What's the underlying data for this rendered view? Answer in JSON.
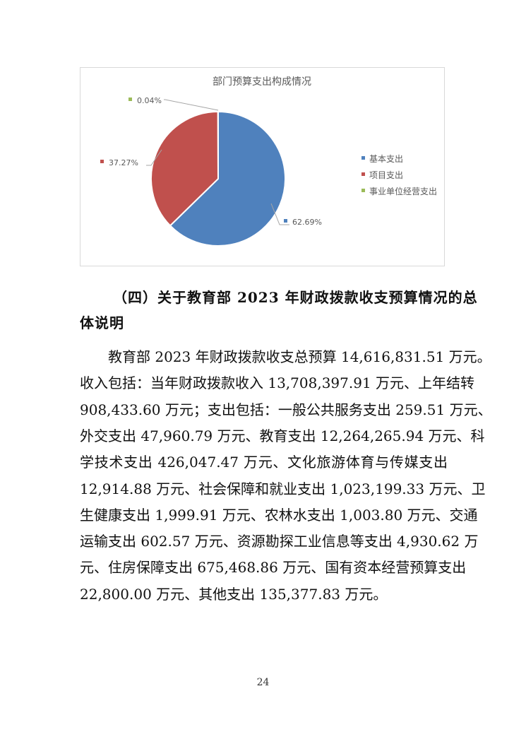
{
  "chart_data": {
    "type": "pie",
    "title": "部门预算支出构成情况",
    "categories": [
      "基本支出",
      "项目支出",
      "事业单位经营支出"
    ],
    "values": [
      62.69,
      37.27,
      0.04
    ],
    "data_labels": [
      "62.69%",
      "37.27%",
      "0.04%"
    ],
    "colors": [
      "#4f81bd",
      "#c0504d",
      "#9bbb59"
    ],
    "legend_position": "right"
  },
  "section": {
    "heading_line1": "（四）关于教育部 2023 年财政拨款收支预算情况的总",
    "heading_line2": "体说明",
    "lines": [
      "教育部 2023 年财政拨款收支总预算 14,616,831.51 万元。",
      "收入包括：当年财政拨款收入 13,708,397.91 万元、上年结转",
      "908,433.60 万元；支出包括：一般公共服务支出 259.51 万元、",
      "外交支出 47,960.79 万元、教育支出 12,264,265.94 万元、科",
      "学技术支出 426,047.47 万元、文化旅游体育与传媒支出",
      "12,914.88 万元、社会保障和就业支出 1,023,199.33 万元、卫",
      "生健康支出 1,999.91 万元、农林水支出 1,003.80 万元、交通",
      "运输支出 602.57 万元、资源勘探工业信息等支出 4,930.62 万",
      "元、住房保障支出 675,468.86 万元、国有资本经营预算支出",
      "22,800.00 万元、其他支出 135,377.83 万元。"
    ]
  },
  "page_number": "24"
}
